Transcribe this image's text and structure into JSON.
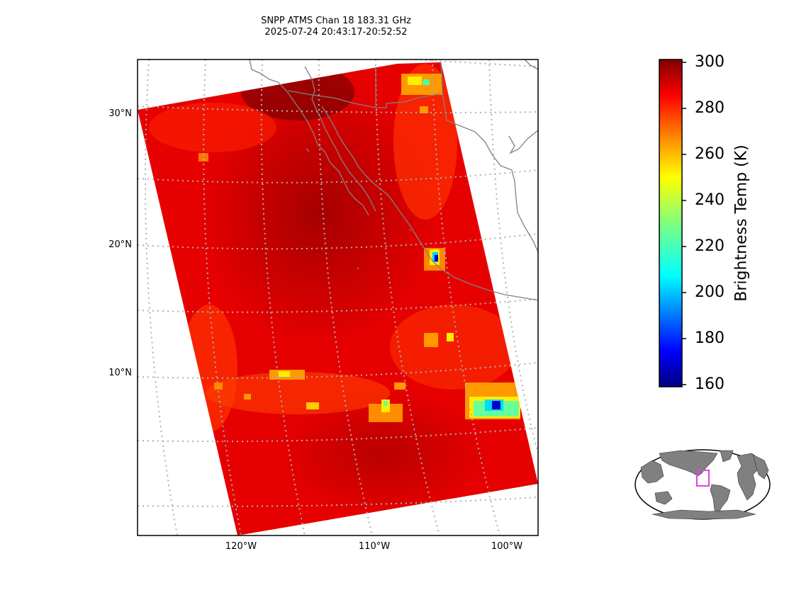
{
  "map": {
    "title_line1": "SNPP ATMS Chan 18 183.31 GHz",
    "title_line2": "2025-07-24 20:43:17-20:52:52",
    "lat_labels": [
      "30°N",
      "20°N",
      "10°N"
    ],
    "lon_labels": [
      "120°W",
      "110°W",
      "100°W"
    ],
    "extent": {
      "lon_min": -128,
      "lon_max": -98,
      "lat_min": -2,
      "lat_max": 34
    },
    "swath_base_color": "#e60000",
    "swath_dark_color": "#b80000",
    "coastline_color": "#808080",
    "gridline_color": "#b0b0b0"
  },
  "colorbar": {
    "label": "Brightness Temp (K)",
    "ticks": [
      "300",
      "280",
      "260",
      "240",
      "220",
      "200",
      "180",
      "160"
    ],
    "range": [
      160,
      300
    ],
    "colormap": "jet"
  },
  "inset": {
    "land_color": "#808080",
    "highlight_color": "#e040e0"
  }
}
